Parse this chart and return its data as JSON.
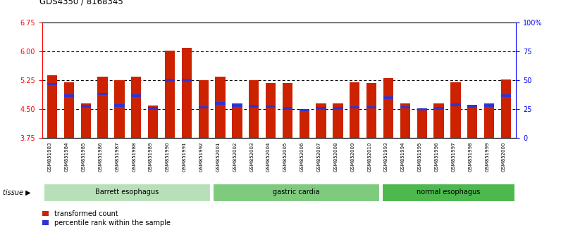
{
  "title": "GDS4350 / 8168345",
  "samples": [
    "GSM851983",
    "GSM851984",
    "GSM851985",
    "GSM851986",
    "GSM851987",
    "GSM851988",
    "GSM851989",
    "GSM851990",
    "GSM851991",
    "GSM851992",
    "GSM852001",
    "GSM852002",
    "GSM852003",
    "GSM852004",
    "GSM852005",
    "GSM852006",
    "GSM852007",
    "GSM852008",
    "GSM852009",
    "GSM852010",
    "GSM851993",
    "GSM851994",
    "GSM851995",
    "GSM851996",
    "GSM851997",
    "GSM851998",
    "GSM851999",
    "GSM852000"
  ],
  "red_values": [
    5.38,
    5.2,
    4.65,
    5.35,
    5.25,
    5.35,
    4.6,
    6.02,
    6.1,
    5.25,
    5.35,
    4.65,
    5.25,
    5.18,
    5.18,
    4.47,
    4.65,
    4.65,
    5.2,
    5.18,
    5.3,
    4.65,
    4.5,
    4.65,
    5.2,
    4.6,
    4.65,
    5.28
  ],
  "blue_values": [
    5.15,
    4.85,
    4.58,
    4.9,
    4.6,
    4.85,
    4.52,
    5.25,
    5.25,
    4.55,
    4.65,
    4.6,
    4.58,
    4.57,
    4.52,
    4.48,
    4.52,
    4.52,
    4.55,
    4.55,
    4.8,
    4.55,
    4.5,
    4.52,
    4.62,
    4.58,
    4.6,
    4.85
  ],
  "tissue_groups": [
    {
      "label": "Barrett esophagus",
      "count": 10,
      "color": "#b8e0b8"
    },
    {
      "label": "gastric cardia",
      "count": 10,
      "color": "#7ecb7e"
    },
    {
      "label": "normal esophagus",
      "count": 8,
      "color": "#4db84d"
    }
  ],
  "ymin": 3.75,
  "ymax": 6.75,
  "yticks_left": [
    3.75,
    4.5,
    5.25,
    6.0,
    6.75
  ],
  "yticks_right": [
    0,
    25,
    50,
    75,
    100
  ],
  "ytick_labels_right": [
    "0",
    "25",
    "50",
    "75",
    "100%"
  ],
  "dotted_lines": [
    4.5,
    5.25,
    6.0
  ],
  "bar_color": "#cc2200",
  "blue_color": "#3333cc",
  "bar_width": 0.6,
  "legend_red": "transformed count",
  "legend_blue": "percentile rank within the sample",
  "tissue_label": "tissue"
}
